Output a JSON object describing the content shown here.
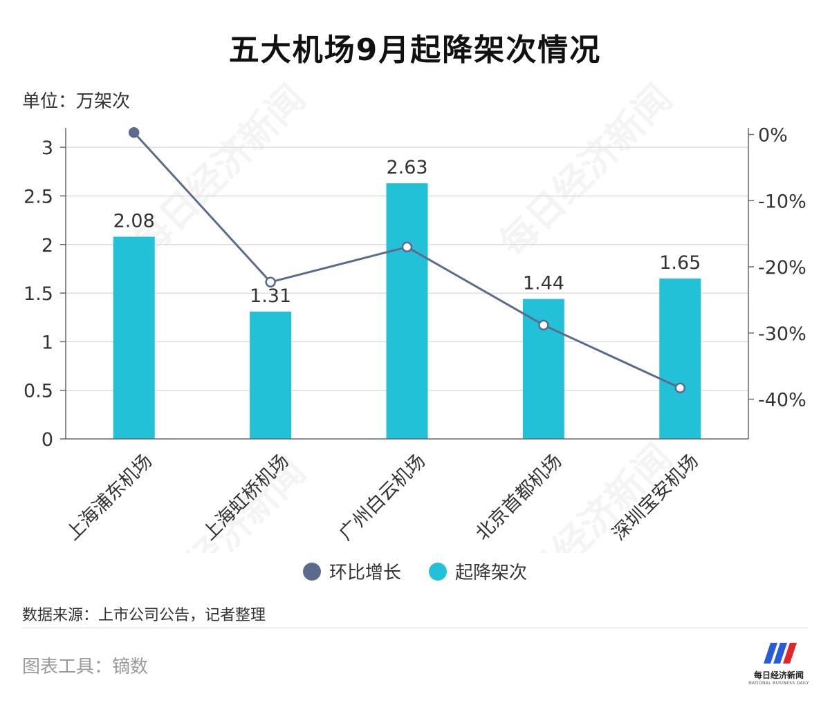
{
  "title": "五大机场9月起降架次情况",
  "unit_label": "单位：万架次",
  "source_text": "数据来源：上市公司公告，记者整理",
  "tool_text": "图表工具：镝数",
  "watermark_text": "每日经济新闻",
  "logo": {
    "name": "每日经济新闻",
    "subtitle": "NATIONAL BUSINESS DAILY"
  },
  "colors": {
    "bar": "#22c1d8",
    "line": "#5b6b8e",
    "grid": "#dddddd",
    "axis": "#666666"
  },
  "legend": [
    {
      "label": "环比增长",
      "color": "#5b6b8e"
    },
    {
      "label": "起降架次",
      "color": "#22c1d8"
    }
  ],
  "chart_data": {
    "type": "bar+line",
    "categories": [
      "上海浦东机场",
      "上海虹桥机场",
      "广州白云机场",
      "北京首都机场",
      "深圳宝安机场"
    ],
    "series": [
      {
        "name": "起降架次",
        "type": "bar",
        "axis": "left",
        "values": [
          2.08,
          1.31,
          2.63,
          1.44,
          1.65
        ],
        "labels": [
          "2.08",
          "1.31",
          "2.63",
          "1.44",
          "1.65"
        ]
      },
      {
        "name": "环比增长",
        "type": "line",
        "axis": "right",
        "values": [
          0.3,
          -22.3,
          -17.0,
          -28.8,
          -38.3
        ]
      }
    ],
    "y_left": {
      "min": 0,
      "max": 3.2,
      "ticks": [
        0,
        0.5,
        1,
        1.5,
        2,
        2.5,
        3
      ],
      "tick_labels": [
        "0",
        "0.5",
        "1",
        "1.5",
        "2",
        "2.5",
        "3"
      ]
    },
    "y_right": {
      "min": -46,
      "max": 1,
      "ticks": [
        0,
        -10,
        -20,
        -30,
        -40
      ],
      "tick_labels": [
        "0%",
        "-10%",
        "-20%",
        "-30%",
        "-40%"
      ]
    },
    "grid": true,
    "legend_position": "bottom-center"
  }
}
